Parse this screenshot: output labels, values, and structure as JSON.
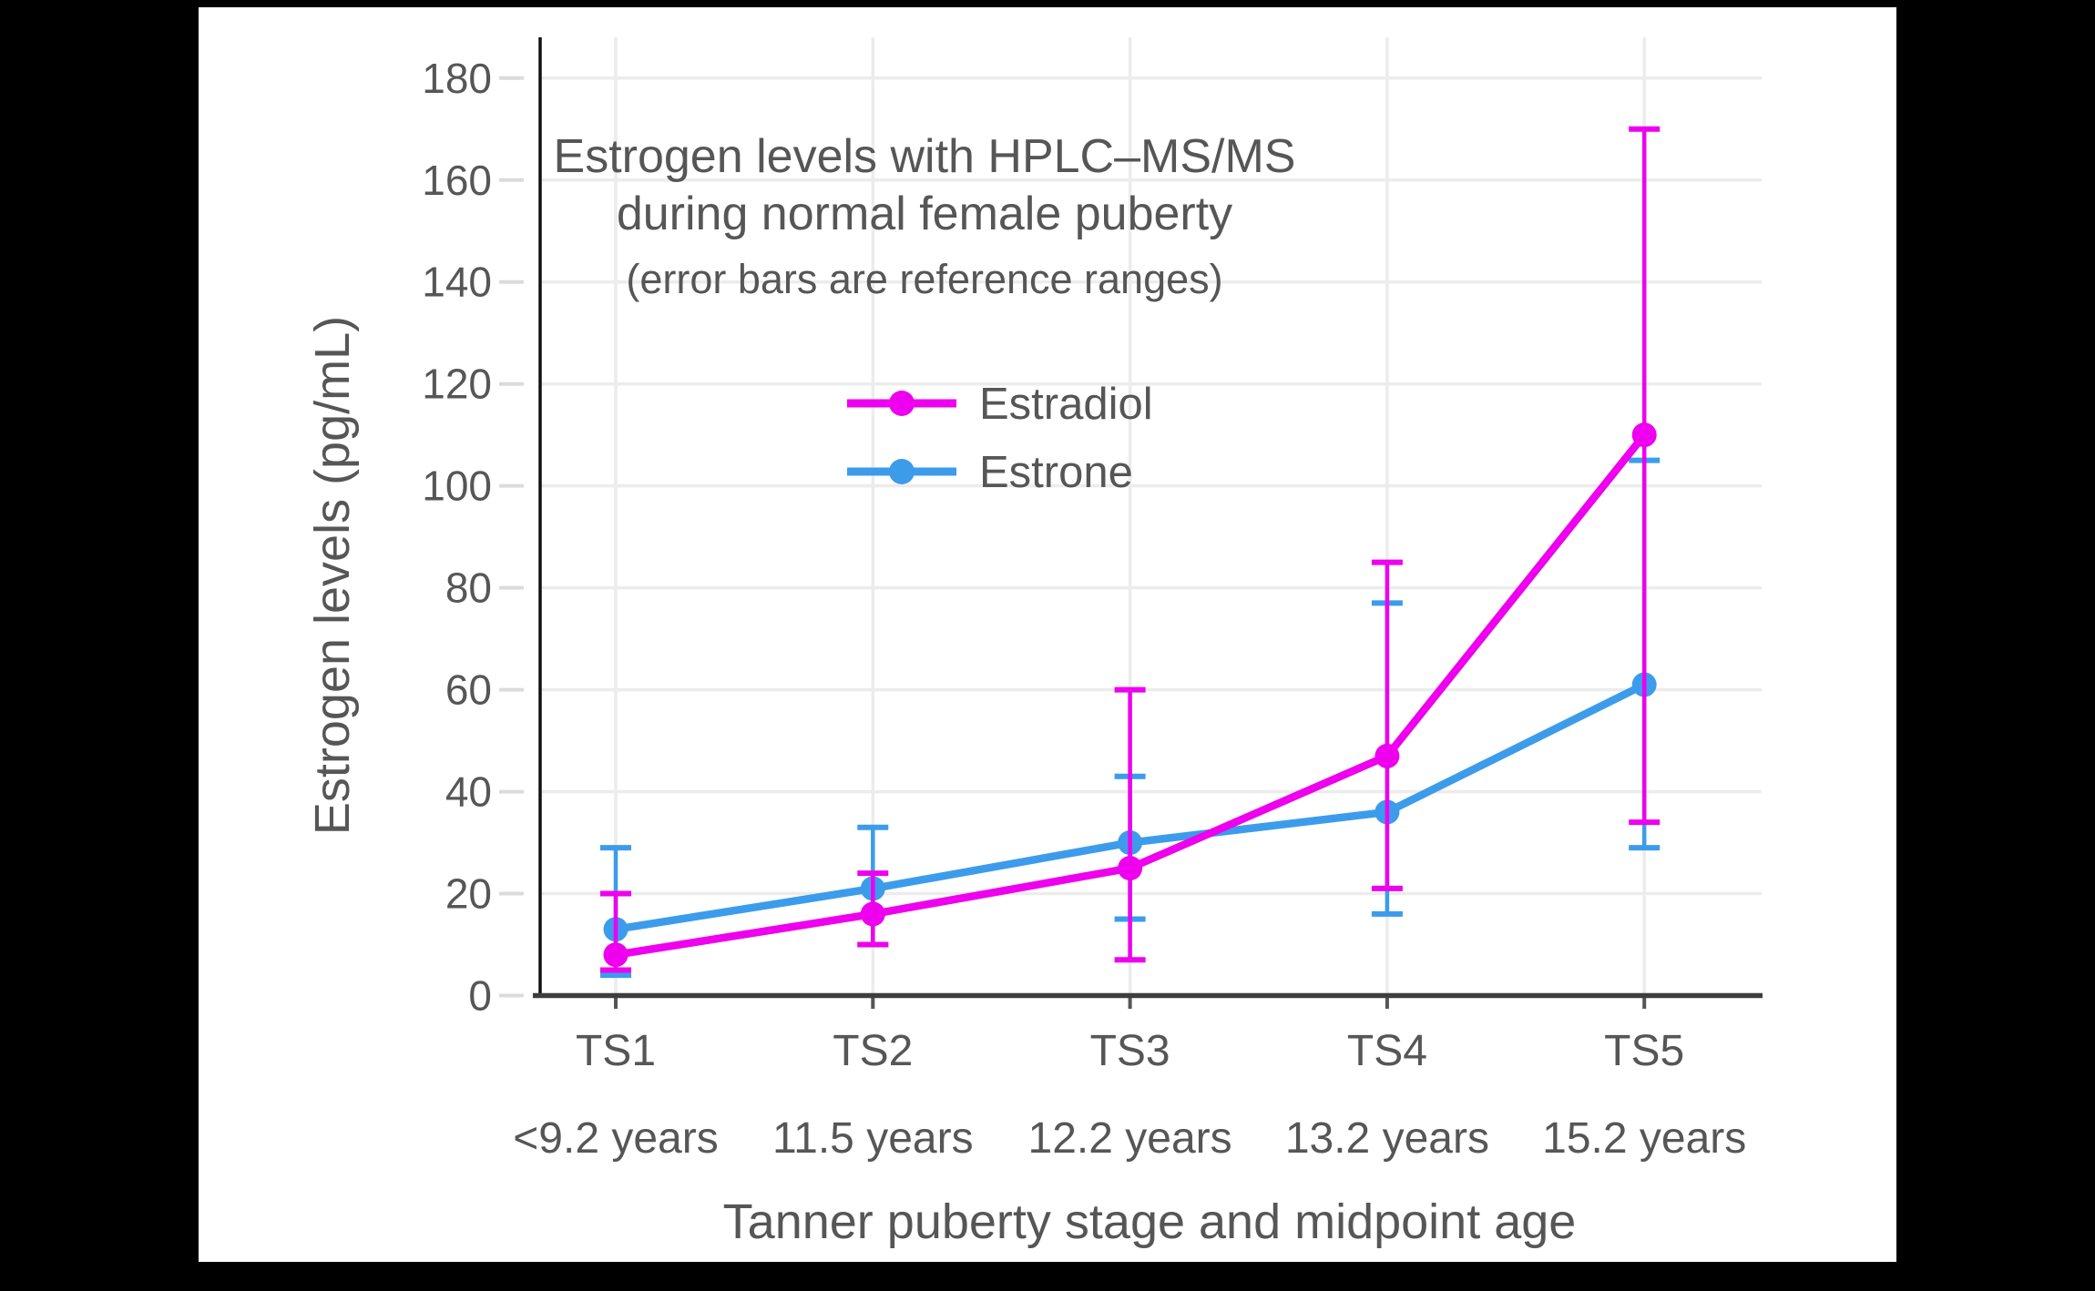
{
  "colors": {
    "background": "#000000",
    "plot_background": "#ffffff",
    "grid": "#ececec",
    "y_spine": "#111111",
    "x_spine": "#3d3d3d",
    "y_tick_dash": "#dbdbdb",
    "x_tick_dash": "#555555",
    "text": "#565656",
    "estradiol": "#ee00ee",
    "estrone": "#3c9ceb"
  },
  "chart_data": {
    "type": "line",
    "title": "Estrogen levels with HPLC–MS/MS",
    "title_line2": "during normal female puberty",
    "subtitle": "(error bars are reference ranges)",
    "xlabel": "Tanner puberty stage and midpoint age",
    "ylabel": "Estrogen levels (pg/mL)",
    "categories": [
      "TS1",
      "TS2",
      "TS3",
      "TS4",
      "TS5"
    ],
    "category_sublabels": [
      "<9.2 years",
      "11.5 years",
      "12.2 years",
      "13.2 years",
      "15.2 years"
    ],
    "y_ticks": [
      0,
      20,
      40,
      60,
      80,
      100,
      120,
      140,
      160,
      180
    ],
    "ylim": [
      0,
      188
    ],
    "grid": true,
    "legend_position": "inside-upper-left",
    "error_bar_meaning": "reference ranges",
    "series": [
      {
        "name": "Estradiol",
        "color": "#ee00ee",
        "values": [
          8,
          16,
          25,
          47,
          110
        ],
        "err_low": [
          5,
          10,
          7,
          21,
          34
        ],
        "err_high": [
          20,
          24,
          60,
          85,
          170
        ]
      },
      {
        "name": "Estrone",
        "color": "#3c9ceb",
        "values": [
          13,
          21,
          30,
          36,
          61
        ],
        "err_low": [
          4,
          10,
          15,
          16,
          29
        ],
        "err_high": [
          29,
          33,
          43,
          77,
          105
        ]
      }
    ]
  }
}
